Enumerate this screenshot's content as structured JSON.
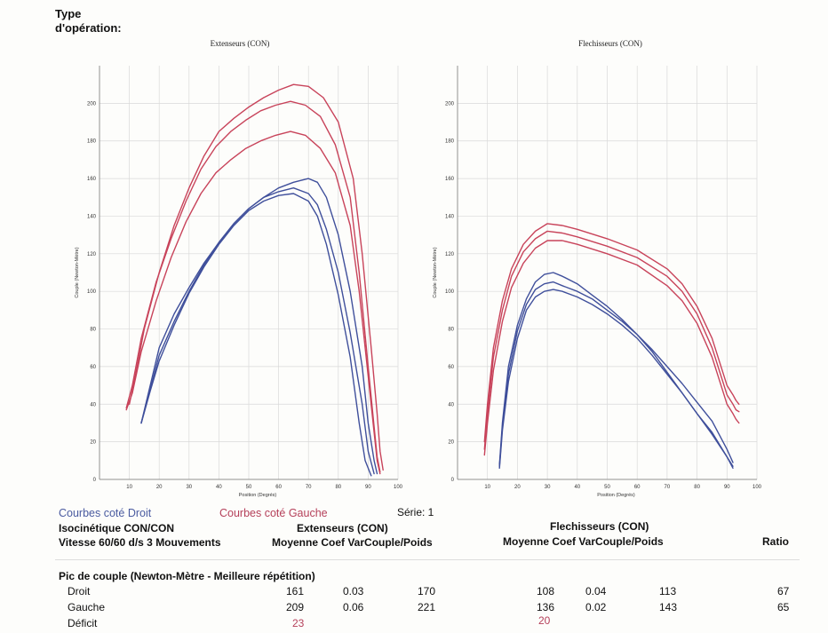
{
  "header": {
    "type_label_line1": "Type",
    "type_label_line2": "d'opération:"
  },
  "chart_data": [
    {
      "type": "line",
      "title": "Extenseurs (CON)",
      "xlabel": "Position (Degrés)",
      "ylabel": "Couple (Newton-Mètre)",
      "xlim": [
        0,
        100
      ],
      "ylim": [
        0,
        220
      ],
      "xticks": [
        10,
        20,
        30,
        40,
        50,
        60,
        70,
        80,
        90,
        100
      ],
      "yticks": [
        0,
        20,
        40,
        60,
        80,
        100,
        120,
        140,
        160,
        180,
        200
      ],
      "grid": true,
      "series": [
        {
          "color": "#c8435a",
          "x": [
            10,
            12,
            15,
            20,
            25,
            30,
            35,
            40,
            45,
            50,
            55,
            60,
            65,
            70,
            75,
            80,
            85,
            88,
            91,
            93,
            94,
            95
          ],
          "y": [
            40,
            55,
            80,
            110,
            135,
            155,
            172,
            185,
            192,
            198,
            203,
            207,
            210,
            209,
            203,
            190,
            160,
            120,
            70,
            35,
            15,
            5
          ]
        },
        {
          "color": "#c8435a",
          "x": [
            9,
            11,
            14,
            19,
            24,
            29,
            34,
            39,
            44,
            49,
            54,
            59,
            64,
            69,
            74,
            79,
            84,
            87,
            90,
            92,
            93,
            94
          ],
          "y": [
            38,
            50,
            75,
            105,
            128,
            148,
            165,
            177,
            185,
            191,
            196,
            199,
            201,
            199,
            193,
            178,
            150,
            110,
            60,
            28,
            12,
            4
          ]
        },
        {
          "color": "#c8435a",
          "x": [
            9,
            11,
            14,
            19,
            24,
            29,
            34,
            39,
            44,
            49,
            54,
            59,
            64,
            69,
            74,
            79,
            84,
            87,
            90,
            92,
            93,
            94
          ],
          "y": [
            37,
            46,
            68,
            95,
            118,
            137,
            152,
            163,
            170,
            176,
            180,
            183,
            185,
            183,
            176,
            163,
            135,
            100,
            55,
            25,
            10,
            3
          ]
        },
        {
          "color": "#3f4f9b",
          "x": [
            14,
            17,
            20,
            25,
            30,
            35,
            40,
            45,
            50,
            55,
            60,
            65,
            70,
            73,
            76,
            80,
            84,
            88,
            90,
            92,
            93
          ],
          "y": [
            30,
            50,
            70,
            88,
            102,
            115,
            126,
            136,
            144,
            150,
            155,
            158,
            160,
            158,
            150,
            130,
            100,
            60,
            30,
            10,
            3
          ]
        },
        {
          "color": "#3f4f9b",
          "x": [
            14,
            17,
            20,
            25,
            30,
            35,
            40,
            45,
            50,
            55,
            60,
            65,
            70,
            73,
            76,
            80,
            84,
            88,
            90,
            92
          ],
          "y": [
            30,
            48,
            66,
            84,
            100,
            114,
            126,
            136,
            144,
            150,
            153,
            155,
            152,
            146,
            133,
            110,
            78,
            40,
            15,
            3
          ]
        },
        {
          "color": "#3f4f9b",
          "x": [
            14,
            17,
            20,
            25,
            30,
            35,
            40,
            45,
            50,
            55,
            60,
            65,
            70,
            73,
            76,
            80,
            84,
            87,
            89,
            91
          ],
          "y": [
            30,
            47,
            63,
            82,
            99,
            113,
            125,
            135,
            143,
            148,
            151,
            152,
            148,
            140,
            125,
            98,
            65,
            30,
            10,
            2
          ]
        }
      ]
    },
    {
      "type": "line",
      "title": "Flechisseurs (CON)",
      "xlabel": "Position (Degrés)",
      "ylabel": "Couple (Newton-Mètre)",
      "xlim": [
        0,
        100
      ],
      "ylim": [
        0,
        220
      ],
      "xticks": [
        10,
        20,
        30,
        40,
        50,
        60,
        70,
        80,
        90,
        100
      ],
      "yticks": [
        0,
        20,
        40,
        60,
        80,
        100,
        120,
        140,
        160,
        180,
        200
      ],
      "grid": true,
      "series": [
        {
          "color": "#c8435a",
          "x": [
            9,
            10,
            12,
            15,
            18,
            22,
            26,
            30,
            35,
            40,
            50,
            60,
            70,
            75,
            80,
            85,
            88,
            90,
            92,
            93,
            94
          ],
          "y": [
            20,
            40,
            70,
            95,
            112,
            125,
            132,
            136,
            135,
            133,
            128,
            122,
            112,
            104,
            92,
            75,
            60,
            50,
            45,
            42,
            40
          ]
        },
        {
          "color": "#c8435a",
          "x": [
            9,
            10,
            12,
            15,
            18,
            22,
            26,
            30,
            35,
            40,
            50,
            60,
            70,
            75,
            80,
            85,
            88,
            90,
            92,
            93,
            94
          ],
          "y": [
            16,
            35,
            65,
            90,
            108,
            121,
            128,
            132,
            131,
            129,
            124,
            118,
            108,
            100,
            88,
            70,
            55,
            45,
            40,
            37,
            36
          ]
        },
        {
          "color": "#c8435a",
          "x": [
            9,
            10,
            12,
            15,
            18,
            22,
            26,
            30,
            35,
            40,
            50,
            60,
            70,
            75,
            80,
            85,
            88,
            90,
            92,
            93,
            94
          ],
          "y": [
            13,
            30,
            58,
            84,
            102,
            115,
            123,
            127,
            127,
            125,
            120,
            114,
            103,
            95,
            83,
            65,
            50,
            40,
            35,
            32,
            30
          ]
        },
        {
          "color": "#3f4f9b",
          "x": [
            14,
            15,
            17,
            20,
            23,
            26,
            29,
            32,
            35,
            40,
            45,
            50,
            55,
            60,
            65,
            70,
            75,
            80,
            85,
            90,
            92
          ],
          "y": [
            8,
            30,
            60,
            82,
            96,
            105,
            109,
            110,
            108,
            104,
            98,
            92,
            85,
            77,
            68,
            57,
            46,
            35,
            25,
            12,
            7
          ]
        },
        {
          "color": "#3f4f9b",
          "x": [
            14,
            15,
            17,
            20,
            23,
            26,
            29,
            32,
            35,
            40,
            45,
            50,
            55,
            60,
            65,
            70,
            75,
            80,
            85,
            90,
            92
          ],
          "y": [
            7,
            28,
            56,
            79,
            93,
            101,
            104,
            105,
            103,
            100,
            96,
            90,
            84,
            77,
            69,
            60,
            51,
            41,
            31,
            16,
            9
          ]
        },
        {
          "color": "#3f4f9b",
          "x": [
            14,
            15,
            17,
            20,
            23,
            26,
            29,
            32,
            35,
            40,
            45,
            50,
            55,
            60,
            65,
            70,
            75,
            80,
            85,
            90,
            92
          ],
          "y": [
            6,
            26,
            52,
            75,
            90,
            97,
            100,
            101,
            100,
            97,
            93,
            88,
            82,
            75,
            66,
            56,
            46,
            35,
            24,
            12,
            6
          ]
        }
      ]
    }
  ],
  "legend": {
    "right": "Courbes coté Droit",
    "left": "Courbes coté Gauche",
    "series_label": "Série: 1"
  },
  "table": {
    "row1_left": "Isocinétique CON/CON",
    "row2_left": "Vitesse 60/60 d/s 3 Mouvements",
    "ext_title": "Extenseurs (CON)",
    "ext_cols": "Moyenne Coef VarCouple/Poids",
    "flx_title": "Flechisseurs (CON)",
    "flx_cols": "Moyenne Coef VarCouple/Poids",
    "ratio_label": "Ratio",
    "section_title": "Pic de couple (Newton-Mètre - Meilleure répétition)",
    "rows": [
      {
        "label": "Droit",
        "ext_mean": "161",
        "ext_cv": "0.03",
        "ext_cp": "170",
        "flx_mean": "108",
        "flx_cv": "0.04",
        "flx_cp": "113",
        "ratio": "67"
      },
      {
        "label": "Gauche",
        "ext_mean": "209",
        "ext_cv": "0.06",
        "ext_cp": "221",
        "flx_mean": "136",
        "flx_cv": "0.02",
        "flx_cp": "143",
        "ratio": "65"
      }
    ],
    "deficit": {
      "label": "Déficit",
      "ext": "23",
      "flx": "20"
    }
  }
}
